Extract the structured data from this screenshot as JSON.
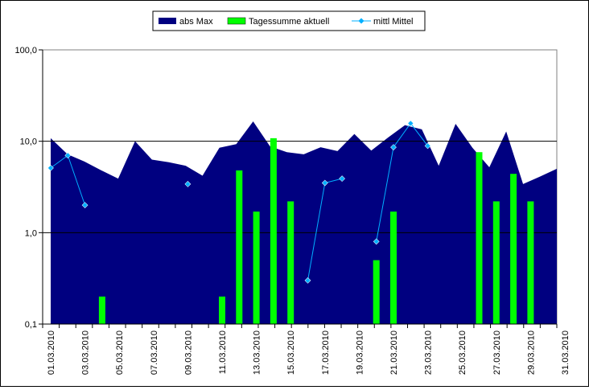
{
  "chart_data": {
    "type": "area+bar+line",
    "yscale": "log",
    "ylim": [
      0.1,
      100
    ],
    "ytick_labels": [
      "0,1",
      "1,0",
      "10,0",
      "100,0"
    ],
    "ytick_values": [
      0.1,
      1,
      10,
      100
    ],
    "grid": "horizontal major lines",
    "legend_placement": "top-center",
    "categories": [
      "01.03.2010",
      "02.03.2010",
      "03.03.2010",
      "04.03.2010",
      "05.03.2010",
      "06.03.2010",
      "07.03.2010",
      "08.03.2010",
      "09.03.2010",
      "10.03.2010",
      "11.03.2010",
      "12.03.2010",
      "13.03.2010",
      "14.03.2010",
      "15.03.2010",
      "16.03.2010",
      "17.03.2010",
      "18.03.2010",
      "19.03.2010",
      "20.03.2010",
      "21.03.2010",
      "22.03.2010",
      "23.03.2010",
      "24.03.2010",
      "25.03.2010",
      "26.03.2010",
      "27.03.2010",
      "28.03.2010",
      "29.03.2010",
      "30.03.2010",
      "31.03.2010"
    ],
    "xtick_labels": [
      "01.03.2010",
      "03.03.2010",
      "05.03.2010",
      "07.03.2010",
      "09.03.2010",
      "11.03.2010",
      "13.03.2010",
      "15.03.2010",
      "17.03.2010",
      "19.03.2010",
      "21.03.2010",
      "23.03.2010",
      "25.03.2010",
      "27.03.2010",
      "29.03.2010",
      "31.03.2010"
    ],
    "series": [
      {
        "name": "abs Max",
        "kind": "area",
        "color": "#000080",
        "values": [
          10.8,
          7.2,
          6.0,
          4.8,
          3.9,
          10.0,
          6.3,
          5.9,
          5.4,
          4.2,
          8.5,
          9.3,
          16.5,
          8.8,
          7.6,
          7.2,
          8.6,
          7.8,
          12.0,
          7.9,
          11.0,
          15.0,
          13.5,
          5.4,
          15.5,
          8.5,
          5.2,
          12.8,
          3.4,
          4.1,
          5.0
        ]
      },
      {
        "name": "Tagessumme aktuell",
        "kind": "bar",
        "color": "#00ff00",
        "values": [
          null,
          null,
          null,
          0.2,
          null,
          null,
          null,
          null,
          null,
          null,
          0.2,
          4.8,
          1.7,
          10.8,
          2.2,
          null,
          null,
          null,
          null,
          0.5,
          1.7,
          null,
          null,
          null,
          null,
          7.6,
          2.2,
          4.4,
          2.2,
          null,
          null
        ]
      },
      {
        "name": "mittl Mittel",
        "kind": "line",
        "color": "#00b0ff",
        "values": [
          5.1,
          7.0,
          2.0,
          null,
          null,
          null,
          null,
          null,
          3.4,
          null,
          null,
          null,
          null,
          null,
          null,
          0.3,
          3.5,
          3.9,
          null,
          0.8,
          8.6,
          15.7,
          8.9,
          null,
          null,
          null,
          null,
          null,
          null,
          null,
          null
        ]
      }
    ]
  }
}
